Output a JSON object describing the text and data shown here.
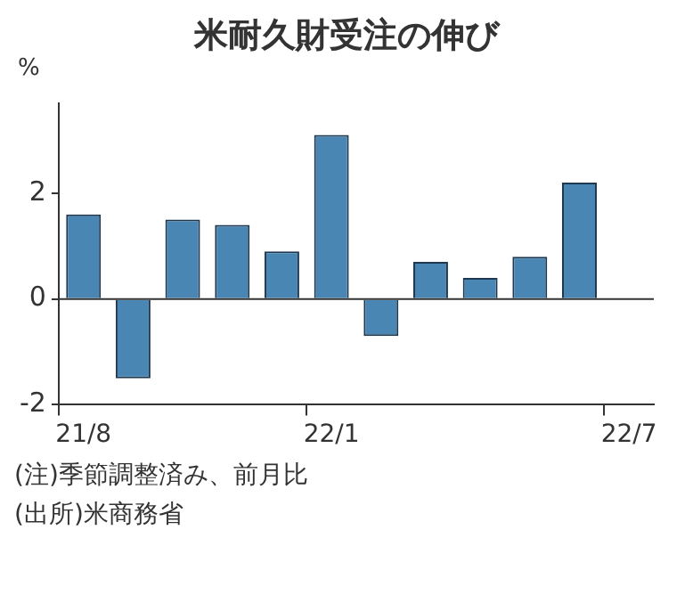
{
  "chart_data": {
    "type": "bar",
    "title": "米耐久財受注の伸び",
    "ylabel": "%",
    "categories": [
      "21/8",
      null,
      null,
      null,
      null,
      "22/1",
      null,
      null,
      null,
      null,
      null,
      "22/7"
    ],
    "values": [
      1.6,
      -1.5,
      1.5,
      1.4,
      0.9,
      3.1,
      -0.7,
      0.7,
      0.4,
      0.8,
      2.2,
      null
    ],
    "color": "#4a86b3",
    "ylim": [
      -2,
      3.7
    ],
    "yticks": [
      -2,
      0,
      2
    ],
    "grid": false,
    "ref_lines": [
      {
        "axis": "y",
        "value": 0
      }
    ],
    "annotations": [
      "(注)季節調整済み、前月比",
      "(出所)米商務省"
    ]
  }
}
